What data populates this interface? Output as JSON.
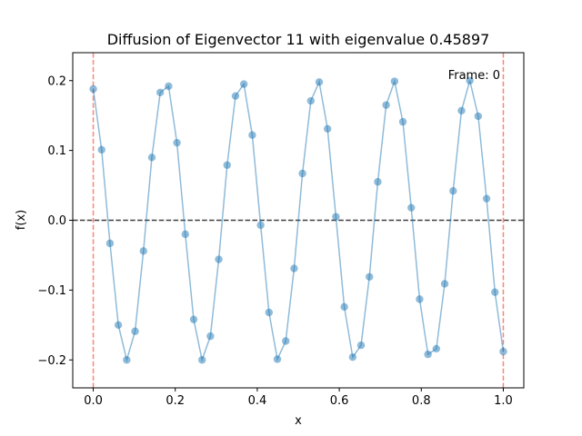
{
  "chart_data": {
    "type": "line",
    "title": "Diffusion of Eigenvector 11 with eigenvalue 0.45897",
    "xlabel": "x",
    "ylabel": "f(x)",
    "xlim": [
      -0.05,
      1.05
    ],
    "ylim": [
      -0.24,
      0.24
    ],
    "xticks": [
      0.0,
      0.2,
      0.4,
      0.6,
      0.8,
      1.0
    ],
    "xtick_labels": [
      "0.0",
      "0.2",
      "0.4",
      "0.6",
      "0.8",
      "1.0"
    ],
    "yticks": [
      -0.2,
      -0.1,
      0.0,
      0.1,
      0.2
    ],
    "ytick_labels": [
      "−0.2",
      "−0.1",
      "0.0",
      "0.1",
      "0.2"
    ],
    "annotation": "Frame: 0",
    "grid": false,
    "series": [
      {
        "color": "#1f77b4",
        "marker": "circle",
        "x": [
          0.0,
          0.0204,
          0.0408,
          0.0612,
          0.0816,
          0.102,
          0.1224,
          0.1429,
          0.1633,
          0.1837,
          0.2041,
          0.2245,
          0.2449,
          0.2653,
          0.2857,
          0.3061,
          0.3265,
          0.3469,
          0.3673,
          0.3878,
          0.4082,
          0.4286,
          0.449,
          0.4694,
          0.4898,
          0.5102,
          0.5306,
          0.551,
          0.5714,
          0.5918,
          0.6122,
          0.6327,
          0.6531,
          0.6735,
          0.6939,
          0.7143,
          0.7347,
          0.7551,
          0.7755,
          0.7959,
          0.8163,
          0.8367,
          0.8571,
          0.8776,
          0.898,
          0.9184,
          0.9388,
          0.9592,
          0.9796,
          1.0
        ],
        "y": [
          0.188,
          0.101,
          -0.033,
          -0.15,
          -0.2,
          -0.159,
          -0.044,
          0.09,
          0.183,
          0.192,
          0.111,
          -0.02,
          -0.142,
          -0.2,
          -0.166,
          -0.056,
          0.079,
          0.178,
          0.195,
          0.122,
          -0.007,
          -0.132,
          -0.199,
          -0.173,
          -0.069,
          0.067,
          0.171,
          0.198,
          0.131,
          0.005,
          -0.124,
          -0.196,
          -0.179,
          -0.081,
          0.055,
          0.165,
          0.199,
          0.141,
          0.018,
          -0.113,
          -0.192,
          -0.184,
          -0.091,
          0.042,
          0.157,
          0.2,
          0.149,
          0.031,
          -0.103,
          -0.188
        ]
      }
    ],
    "reference_lines": [
      {
        "orientation": "horizontal",
        "value": 0.0,
        "style": "dashed",
        "color": "#000000"
      },
      {
        "orientation": "vertical",
        "value": 0.0,
        "style": "dashed",
        "color": "#fa8072"
      },
      {
        "orientation": "vertical",
        "value": 1.0,
        "style": "dashed",
        "color": "#fa8072"
      }
    ]
  }
}
